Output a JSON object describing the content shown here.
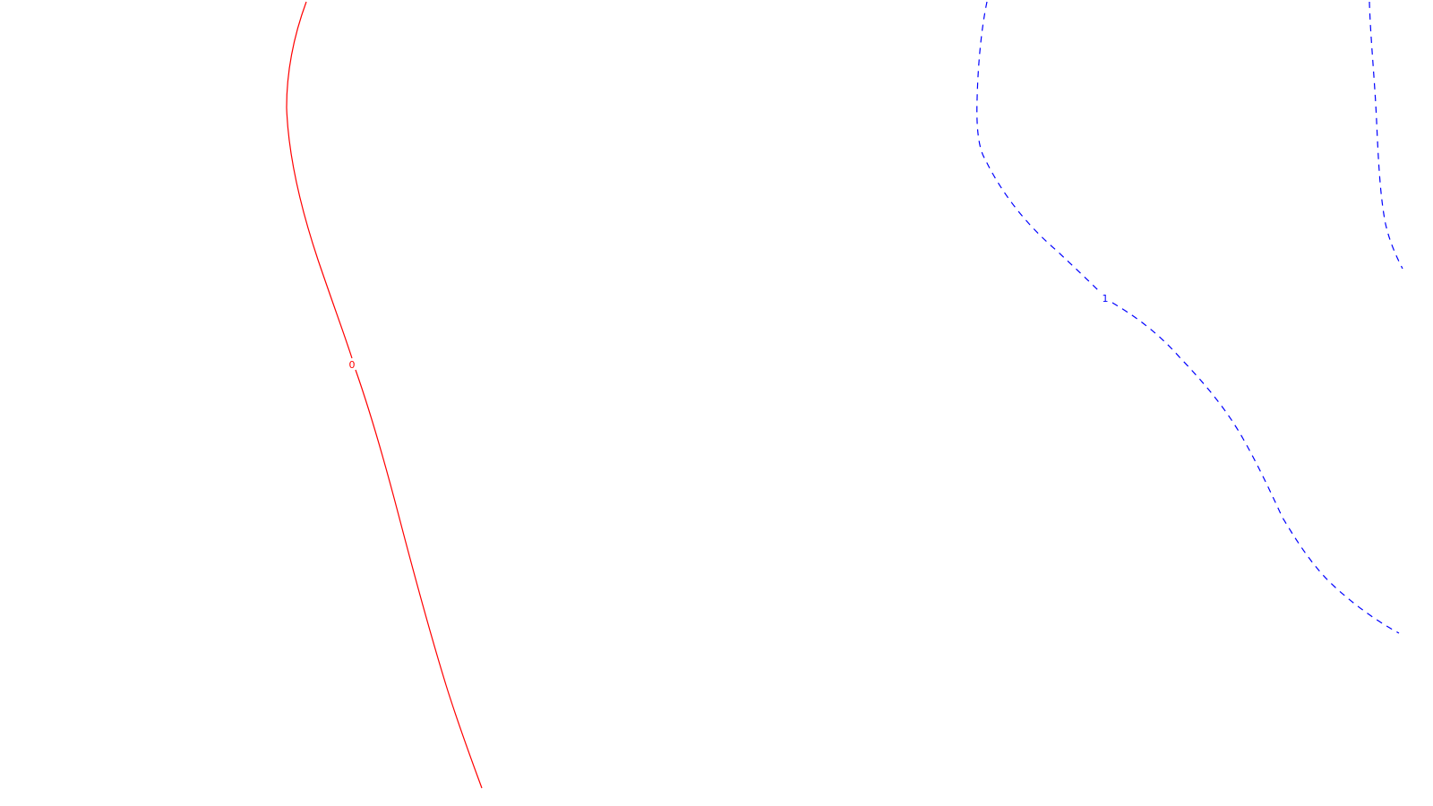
{
  "map": {
    "contours": [
      {
        "id": "contour-0",
        "label": "0",
        "color": "#ff0000",
        "style": "solid"
      },
      {
        "id": "contour-1",
        "label": "1",
        "color": "#0000ff",
        "style": "dashed"
      }
    ]
  }
}
